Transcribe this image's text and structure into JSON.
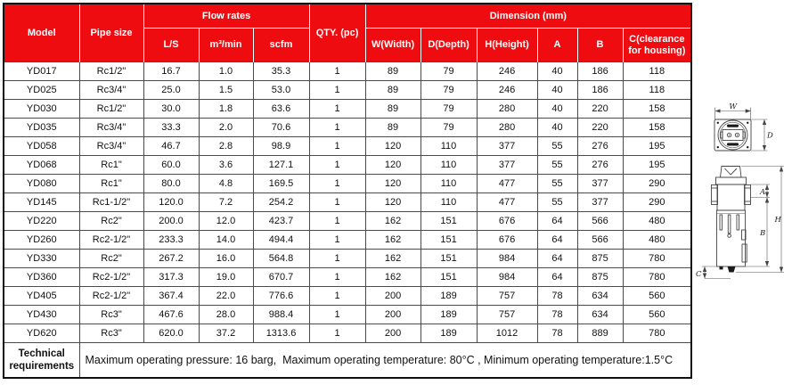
{
  "colors": {
    "header_red": "#ee0c11",
    "grid_line": "#4a4a4a",
    "header_text": "#ffffff"
  },
  "table": {
    "header": {
      "model": "Model",
      "pipe_size": "Pipe size",
      "flow_rates": "Flow rates",
      "flow_subcols": {
        "ls": "L/S",
        "m3_min": "m³/min",
        "scfm": "scfm"
      },
      "qty": "QTY. (pc)",
      "dimension": "Dimension (mm)",
      "dim_subcols": {
        "w": "W(Width)",
        "d": "D(Depth)",
        "h": "H(Height)",
        "a": "A",
        "b": "B",
        "c": "C(clearance for housing)"
      }
    },
    "rows": [
      {
        "model": "YD017",
        "pipe_size": "Rc1/2\"",
        "ls": "16.7",
        "m3_min": "1.0",
        "scfm": "35.3",
        "qty": "1",
        "w": "89",
        "d": "79",
        "h": "246",
        "a": "40",
        "b": "186",
        "c": "118"
      },
      {
        "model": "YD025",
        "pipe_size": "Rc3/4\"",
        "ls": "25.0",
        "m3_min": "1.5",
        "scfm": "53.0",
        "qty": "1",
        "w": "89",
        "d": "79",
        "h": "246",
        "a": "40",
        "b": "186",
        "c": "118"
      },
      {
        "model": "YD030",
        "pipe_size": "Rc1/2\"",
        "ls": "30.0",
        "m3_min": "1.8",
        "scfm": "63.6",
        "qty": "1",
        "w": "89",
        "d": "79",
        "h": "280",
        "a": "40",
        "b": "220",
        "c": "158"
      },
      {
        "model": "YD035",
        "pipe_size": "Rc3/4\"",
        "ls": "33.3",
        "m3_min": "2.0",
        "scfm": "70.6",
        "qty": "1",
        "w": "89",
        "d": "79",
        "h": "280",
        "a": "40",
        "b": "220",
        "c": "158"
      },
      {
        "model": "YD058",
        "pipe_size": "Rc3/4\"",
        "ls": "46.7",
        "m3_min": "2.8",
        "scfm": "98.9",
        "qty": "1",
        "w": "120",
        "d": "110",
        "h": "377",
        "a": "55",
        "b": "276",
        "c": "195"
      },
      {
        "model": "YD068",
        "pipe_size": "Rc1\"",
        "ls": "60.0",
        "m3_min": "3.6",
        "scfm": "127.1",
        "qty": "1",
        "w": "120",
        "d": "110",
        "h": "377",
        "a": "55",
        "b": "276",
        "c": "195"
      },
      {
        "model": "YD080",
        "pipe_size": "Rc1\"",
        "ls": "80.0",
        "m3_min": "4.8",
        "scfm": "169.5",
        "qty": "1",
        "w": "120",
        "d": "110",
        "h": "477",
        "a": "55",
        "b": "377",
        "c": "290"
      },
      {
        "model": "YD145",
        "pipe_size": "Rc1-1/2\"",
        "ls": "120.0",
        "m3_min": "7.2",
        "scfm": "254.2",
        "qty": "1",
        "w": "120",
        "d": "110",
        "h": "477",
        "a": "55",
        "b": "377",
        "c": "290"
      },
      {
        "model": "YD220",
        "pipe_size": "Rc2\"",
        "ls": "200.0",
        "m3_min": "12.0",
        "scfm": "423.7",
        "qty": "1",
        "w": "162",
        "d": "151",
        "h": "676",
        "a": "64",
        "b": "566",
        "c": "480"
      },
      {
        "model": "YD260",
        "pipe_size": "Rc2-1/2\"",
        "ls": "233.3",
        "m3_min": "14.0",
        "scfm": "494.4",
        "qty": "1",
        "w": "162",
        "d": "151",
        "h": "676",
        "a": "64",
        "b": "566",
        "c": "480"
      },
      {
        "model": "YD330",
        "pipe_size": "Rc2\"",
        "ls": "267.2",
        "m3_min": "16.0",
        "scfm": "564.8",
        "qty": "1",
        "w": "162",
        "d": "151",
        "h": "984",
        "a": "64",
        "b": "875",
        "c": "780"
      },
      {
        "model": "YD360",
        "pipe_size": "Rc2-1/2\"",
        "ls": "317.3",
        "m3_min": "19.0",
        "scfm": "670.7",
        "qty": "1",
        "w": "162",
        "d": "151",
        "h": "984",
        "a": "64",
        "b": "875",
        "c": "780"
      },
      {
        "model": "YD405",
        "pipe_size": "Rc2-1/2\"",
        "ls": "367.4",
        "m3_min": "22.0",
        "scfm": "776.6",
        "qty": "1",
        "w": "200",
        "d": "189",
        "h": "757",
        "a": "78",
        "b": "634",
        "c": "560"
      },
      {
        "model": "YD430",
        "pipe_size": "Rc3\"",
        "ls": "467.6",
        "m3_min": "28.0",
        "scfm": "988.4",
        "qty": "1",
        "w": "200",
        "d": "189",
        "h": "757",
        "a": "78",
        "b": "634",
        "c": "560"
      },
      {
        "model": "YD620",
        "pipe_size": "Rc3\"",
        "ls": "620.0",
        "m3_min": "37.2",
        "scfm": "1313.6",
        "qty": "1",
        "w": "200",
        "d": "189",
        "h": "1012",
        "a": "78",
        "b": "889",
        "c": "780"
      }
    ],
    "footer": {
      "label": "Technical requirements",
      "text": "Maximum operating pressure: 16 barg,  Maximum operating temperature: 80°C , Minimum operating temperature:1.5°C"
    }
  },
  "diagram": {
    "labels": {
      "w": "W",
      "d": "D",
      "a": "A",
      "b": "B",
      "h": "H",
      "c": "C"
    }
  }
}
